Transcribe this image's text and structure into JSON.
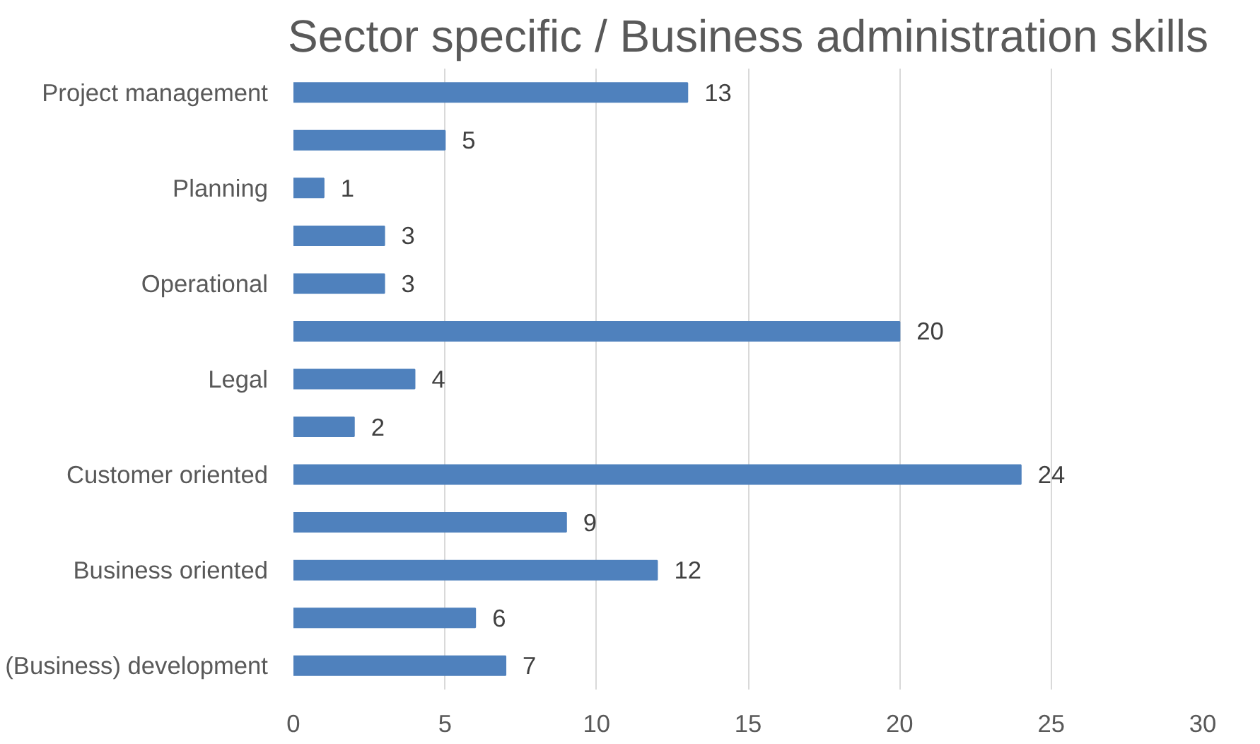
{
  "chart_data": {
    "type": "bar",
    "orientation": "horizontal",
    "title": "Sector specific / Business administration skills",
    "categories": [
      "Project management",
      null,
      "Planning",
      null,
      "Operational",
      null,
      "Legal",
      null,
      "Customer oriented",
      null,
      "Business oriented",
      null,
      "(Business) development"
    ],
    "values": [
      13,
      5,
      1,
      3,
      3,
      20,
      4,
      2,
      24,
      9,
      12,
      6,
      7
    ],
    "color": "#4f81bd",
    "xlim": [
      0,
      30
    ],
    "xticks": [
      0,
      5,
      10,
      15,
      20,
      25,
      30
    ],
    "grid": "x",
    "data_labels": true
  }
}
